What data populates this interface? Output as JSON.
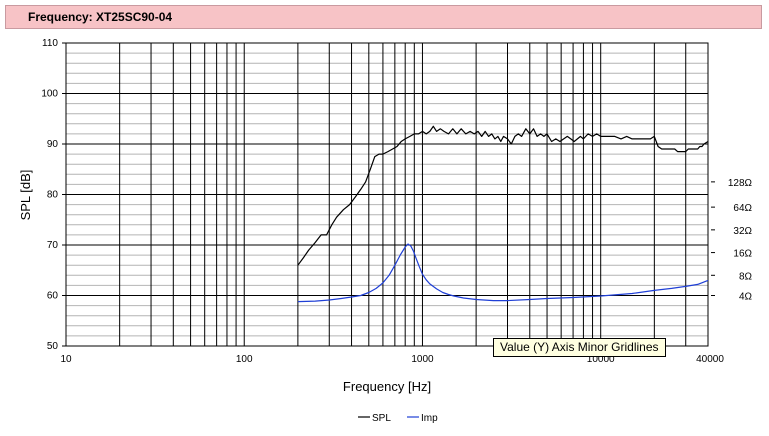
{
  "window": {
    "title": "Frequency: XT25SC90-04"
  },
  "tooltip": {
    "text": "Value (Y) Axis Minor Gridlines"
  },
  "legend": [
    {
      "name": "SPL",
      "color": "#000000"
    },
    {
      "name": "Imp",
      "color": "#1f3fd6"
    }
  ],
  "chart_data": {
    "type": "line",
    "xlabel": "Frequency [Hz]",
    "ylabel": "SPL [dB]",
    "xscale": "log",
    "xlim": [
      10,
      40000
    ],
    "ylim": [
      50,
      110
    ],
    "x_tick_labels": [
      "10",
      "100",
      "1000",
      "10000",
      "40000"
    ],
    "y_tick_labels": [
      "50",
      "60",
      "70",
      "80",
      "90",
      "100",
      "110"
    ],
    "y_major_ticks": [
      50,
      60,
      70,
      80,
      90,
      100,
      110
    ],
    "y_minor_step": 2,
    "grid": true,
    "impedance_axis_labels": [
      "4Ω",
      "8Ω",
      "16Ω",
      "32Ω",
      "64Ω",
      "128Ω"
    ],
    "impedance_axis_spl": [
      60,
      64,
      68.5,
      73,
      77.5,
      82.5
    ],
    "legend_position": "bottom",
    "series": [
      {
        "name": "SPL",
        "color": "#000000",
        "x": [
          200,
          215,
          230,
          250,
          270,
          290,
          310,
          330,
          360,
          390,
          420,
          450,
          480,
          510,
          540,
          570,
          600,
          640,
          680,
          720,
          760,
          800,
          850,
          900,
          950,
          1000,
          1050,
          1100,
          1150,
          1200,
          1260,
          1320,
          1400,
          1480,
          1560,
          1650,
          1750,
          1850,
          1950,
          2050,
          2150,
          2250,
          2350,
          2450,
          2550,
          2650,
          2750,
          2850,
          3000,
          3150,
          3300,
          3450,
          3600,
          3800,
          4000,
          4200,
          4400,
          4600,
          4800,
          5000,
          5300,
          5600,
          5900,
          6200,
          6500,
          6800,
          7100,
          7400,
          7700,
          8000,
          8500,
          9000,
          9500,
          10000,
          11000,
          12000,
          13000,
          14000,
          15000,
          16000,
          17000,
          18000,
          19000,
          20000,
          21000,
          22000,
          23000,
          24000,
          25000,
          26000,
          27000,
          28000,
          29000,
          30000,
          31000,
          32000,
          33000,
          34000,
          35000,
          36000,
          37000,
          38000,
          40000
        ],
        "y": [
          66,
          67.5,
          69,
          70.5,
          72,
          72,
          74,
          75.5,
          77,
          78,
          79.5,
          81,
          82.5,
          85,
          87.5,
          88,
          88,
          88.5,
          89,
          89.5,
          90.5,
          91,
          91.5,
          92,
          92,
          92.5,
          92,
          92.5,
          93.5,
          92.5,
          93,
          92.5,
          92,
          93,
          92,
          93,
          92,
          92.5,
          92,
          92.5,
          91.5,
          92.5,
          91.5,
          92,
          91,
          91.5,
          90.5,
          91.5,
          91,
          90,
          91.5,
          92,
          91.5,
          93,
          92,
          93,
          91.5,
          92,
          91.5,
          92,
          90.5,
          91,
          90.5,
          91,
          91.5,
          91,
          90.5,
          91,
          91.5,
          91,
          92,
          91.5,
          92,
          91.5,
          91.5,
          91.5,
          91,
          91.5,
          91,
          91,
          91,
          91,
          91,
          91.5,
          89.5,
          89,
          89,
          89,
          89,
          89,
          88.5,
          88.5,
          88.5,
          88.5,
          89,
          89,
          89,
          89,
          89,
          89.5,
          89.5,
          90,
          90.5
        ]
      },
      {
        "name": "Imp",
        "color": "#1f3fd6",
        "x": [
          200,
          250,
          300,
          350,
          400,
          450,
          500,
          550,
          600,
          650,
          700,
          750,
          800,
          830,
          860,
          890,
          920,
          960,
          1000,
          1050,
          1100,
          1200,
          1300,
          1400,
          1500,
          1700,
          2000,
          2500,
          3000,
          4000,
          5000,
          7000,
          10000,
          15000,
          20000,
          25000,
          30000,
          35000,
          40000
        ],
        "y": [
          58.8,
          58.9,
          59.1,
          59.4,
          59.7,
          60,
          60.6,
          61.4,
          62.5,
          64,
          66,
          68,
          69.6,
          70.2,
          69.8,
          68.8,
          67.4,
          65.7,
          64.2,
          63.1,
          62.3,
          61.3,
          60.6,
          60.2,
          59.9,
          59.5,
          59.2,
          59,
          59,
          59.2,
          59.4,
          59.6,
          59.9,
          60.4,
          61,
          61.4,
          61.8,
          62.2,
          63
        ]
      }
    ]
  }
}
